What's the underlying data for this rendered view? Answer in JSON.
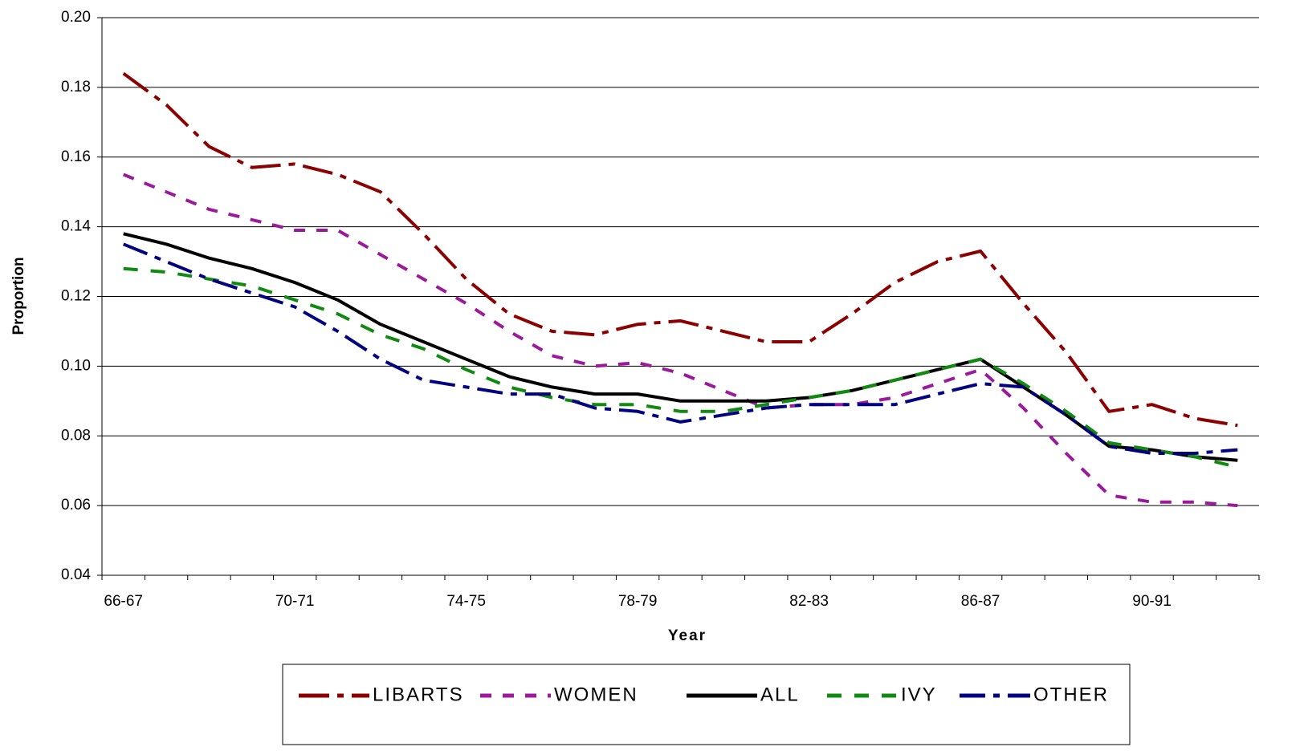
{
  "chart_data": {
    "type": "line",
    "x_label": "Year",
    "y_label": "Proportion",
    "categories": [
      "66-67",
      null,
      null,
      null,
      "70-71",
      null,
      null,
      null,
      "74-75",
      null,
      null,
      null,
      "78-79",
      null,
      null,
      null,
      "82-83",
      null,
      null,
      null,
      "86-87",
      null,
      null,
      null,
      "90-91",
      null,
      null
    ],
    "ylim": [
      0.04,
      0.2
    ],
    "yticks": [
      0.04,
      0.06,
      0.08,
      {
        "value": 0.1,
        "label": "0.10"
      },
      0.12,
      0.14,
      0.16,
      0.18,
      {
        "value": 0.2,
        "label": "0.20"
      }
    ],
    "grid": true,
    "legend": "bottom",
    "series": [
      {
        "name": "LIBARTS",
        "color": "#8b0000",
        "values": [
          0.184,
          0.175,
          0.163,
          0.157,
          0.158,
          0.155,
          0.15,
          0.138,
          0.125,
          0.115,
          0.11,
          0.109,
          0.112,
          0.113,
          0.11,
          0.107,
          0.107,
          0.115,
          0.124,
          0.13,
          0.133,
          0.118,
          0.104,
          0.087,
          0.089,
          0.085,
          0.083
        ]
      },
      {
        "name": "WOMEN",
        "color": "#9b1a9b",
        "values": [
          0.155,
          0.15,
          0.145,
          0.142,
          0.139,
          0.139,
          0.132,
          0.125,
          0.118,
          0.11,
          0.103,
          0.1,
          0.101,
          0.098,
          0.093,
          0.088,
          0.089,
          0.089,
          0.091,
          0.095,
          0.099,
          0.088,
          0.075,
          0.063,
          0.061,
          0.061,
          0.06
        ]
      },
      {
        "name": "ALL",
        "color": "#000000",
        "values": [
          0.138,
          0.135,
          0.131,
          0.128,
          0.124,
          0.119,
          0.112,
          0.107,
          0.102,
          0.097,
          0.094,
          0.092,
          0.092,
          0.09,
          0.09,
          0.09,
          0.091,
          0.093,
          0.096,
          0.099,
          0.102,
          0.094,
          0.086,
          0.077,
          0.076,
          0.074,
          0.073
        ]
      },
      {
        "name": "IVY",
        "color": "#108a10",
        "values": [
          0.128,
          0.127,
          0.125,
          0.123,
          0.119,
          0.115,
          0.109,
          0.105,
          0.099,
          0.094,
          0.091,
          0.089,
          0.089,
          0.087,
          0.087,
          0.089,
          0.091,
          0.093,
          0.096,
          0.099,
          0.102,
          0.095,
          0.087,
          0.078,
          0.076,
          0.074,
          0.071
        ]
      },
      {
        "name": "OTHER",
        "color": "#000080",
        "values": [
          0.135,
          0.13,
          0.125,
          0.121,
          0.117,
          0.11,
          0.102,
          0.096,
          0.094,
          0.092,
          0.092,
          0.088,
          0.087,
          0.084,
          0.086,
          0.088,
          0.089,
          0.089,
          0.089,
          0.092,
          0.095,
          0.094,
          0.086,
          0.077,
          0.075,
          0.075,
          0.076
        ]
      }
    ]
  }
}
